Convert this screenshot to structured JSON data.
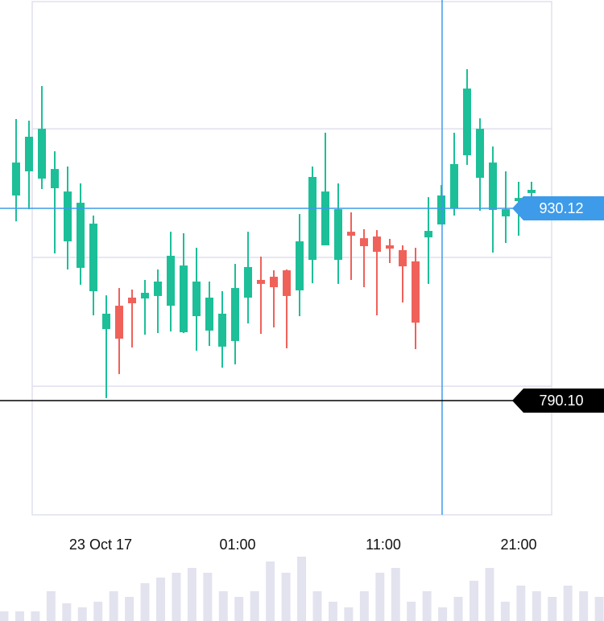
{
  "chart_data": [
    {
      "type": "candlestick",
      "x": [
        0,
        1,
        2,
        3,
        4,
        5,
        6,
        7,
        8,
        9,
        10,
        11,
        12,
        13,
        14,
        15,
        16,
        17,
        18,
        19,
        20,
        21,
        22,
        23,
        24,
        25,
        26,
        27,
        28,
        29,
        30,
        31,
        32,
        33,
        34,
        35,
        36,
        37,
        38,
        39,
        40
      ],
      "open": [
        939.5,
        957.1,
        951.8,
        944.8,
        906.1,
        886.8,
        869.8,
        842.2,
        859.2,
        865.1,
        864.5,
        866.3,
        859.2,
        839.9,
        851.6,
        841.1,
        829.4,
        833.5,
        865.1,
        878.0,
        880.3,
        885.0,
        870.4,
        892.6,
        903.2,
        892.6,
        913.1,
        908.4,
        909.6,
        903.2,
        899.7,
        891.5,
        909.0,
        918.4,
        930.1,
        968.8,
        952.4,
        929.0,
        924.3,
        935.4,
        941.3
      ],
      "high": [
        995.2,
        994.0,
        1019.2,
        971.7,
        960.6,
        948.3,
        924.9,
        866.8,
        872.1,
        871.0,
        878.0,
        885.6,
        913.1,
        912.0,
        901.4,
        876.8,
        869.8,
        889.7,
        913.1,
        895.0,
        885.0,
        885.6,
        926.0,
        960.6,
        985.2,
        948.3,
        927.2,
        914.9,
        914.3,
        907.9,
        903.2,
        901.4,
        938.3,
        947.1,
        985.2,
        1031.5,
        995.7,
        975.2,
        957.1,
        949.5,
        949.5
      ],
      "low": [
        920.7,
        929.5,
        944.2,
        897.3,
        885.6,
        874.5,
        852.2,
        791.9,
        809.4,
        828.8,
        838.1,
        839.3,
        840.5,
        839.3,
        826.4,
        829.9,
        814.1,
        816.5,
        846.3,
        838.7,
        843.4,
        828.2,
        851.6,
        875.6,
        903.2,
        875.1,
        878.0,
        872.7,
        852.2,
        890.3,
        861.6,
        827.6,
        875.1,
        918.4,
        924.9,
        961.8,
        928.4,
        897.9,
        904.9,
        910.2,
        930.7
      ],
      "close": [
        963.5,
        982.3,
        988.1,
        958.8,
        942.4,
        934.2,
        919.0,
        853.4,
        835.2,
        861.0,
        868.6,
        876.8,
        895.6,
        888.5,
        876.8,
        865.1,
        853.4,
        872.1,
        887.4,
        875.1,
        872.7,
        866.3,
        906.1,
        953.0,
        942.4,
        929.5,
        910.2,
        902.6,
        898.5,
        900.8,
        887.9,
        846.9,
        913.7,
        939.5,
        962.4,
        1017.4,
        988.1,
        963.5,
        929.5,
        937.7,
        943.6
      ],
      "up_color": "#1cbf98",
      "down_color": "#f0615a",
      "xlim": [
        -1.25,
        45.625
      ],
      "ylim": [
        706.9,
        1081.9
      ],
      "xticks": [
        {
          "value": 6.56,
          "label": "23 Oct 17"
        },
        {
          "value": 17.19,
          "label": "01:00"
        },
        {
          "value": 28.5,
          "label": "11:00"
        },
        {
          "value": 39.0,
          "label": "21:00"
        }
      ],
      "yticks": [
        988.1,
        894.4,
        800.6
      ],
      "grid": true,
      "crosshair": {
        "x": 33.06,
        "y": 930.12,
        "color": "#3d9be9"
      },
      "price_line": {
        "value": 790.1,
        "label": "790.10",
        "color": "#000000"
      }
    },
    {
      "type": "bar",
      "categories": [
        null,
        null,
        null,
        null,
        null,
        null,
        null,
        null,
        null,
        null,
        null,
        null,
        null,
        null,
        null,
        null,
        null,
        null,
        null,
        null,
        null,
        null,
        null,
        null,
        null,
        null,
        null,
        null,
        null,
        null,
        null,
        null,
        null,
        null,
        null,
        null,
        null,
        null,
        null
      ],
      "values": [
        12,
        12,
        12,
        37,
        22,
        17,
        24,
        37,
        30,
        47,
        54,
        60,
        66,
        60,
        37,
        30,
        37,
        74,
        60,
        80,
        37,
        24,
        17,
        37,
        60,
        66,
        24,
        37,
        17,
        30,
        50,
        66,
        24,
        44,
        37,
        30,
        44,
        37,
        30
      ],
      "color": "#e3e3ef",
      "ylim": [
        0,
        100
      ]
    }
  ]
}
